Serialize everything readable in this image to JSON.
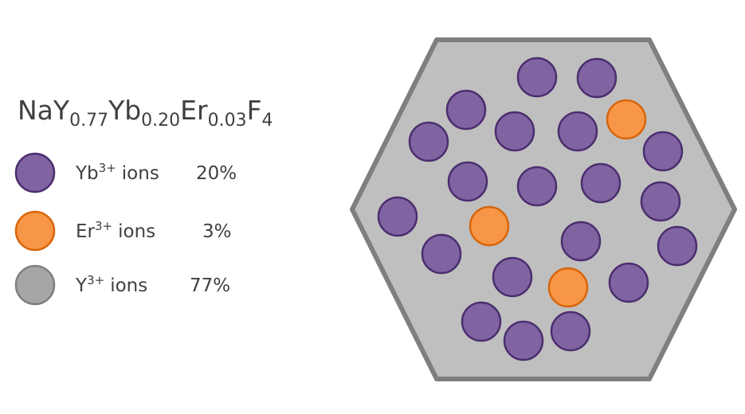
{
  "formula": [
    "NaY",
    "0.77",
    "Yb",
    "0.20",
    "Er",
    "0.03",
    "F",
    "4"
  ],
  "legend": [
    {
      "ion": "Yb",
      "charge": "3+",
      "label": "ions",
      "percent": "20%"
    },
    {
      "ion": "Er",
      "charge": "3+",
      "label": "ions",
      "percent": "3%"
    },
    {
      "ion": "Y",
      "charge": "3+",
      "label": "ions",
      "percent": "77%"
    }
  ]
}
